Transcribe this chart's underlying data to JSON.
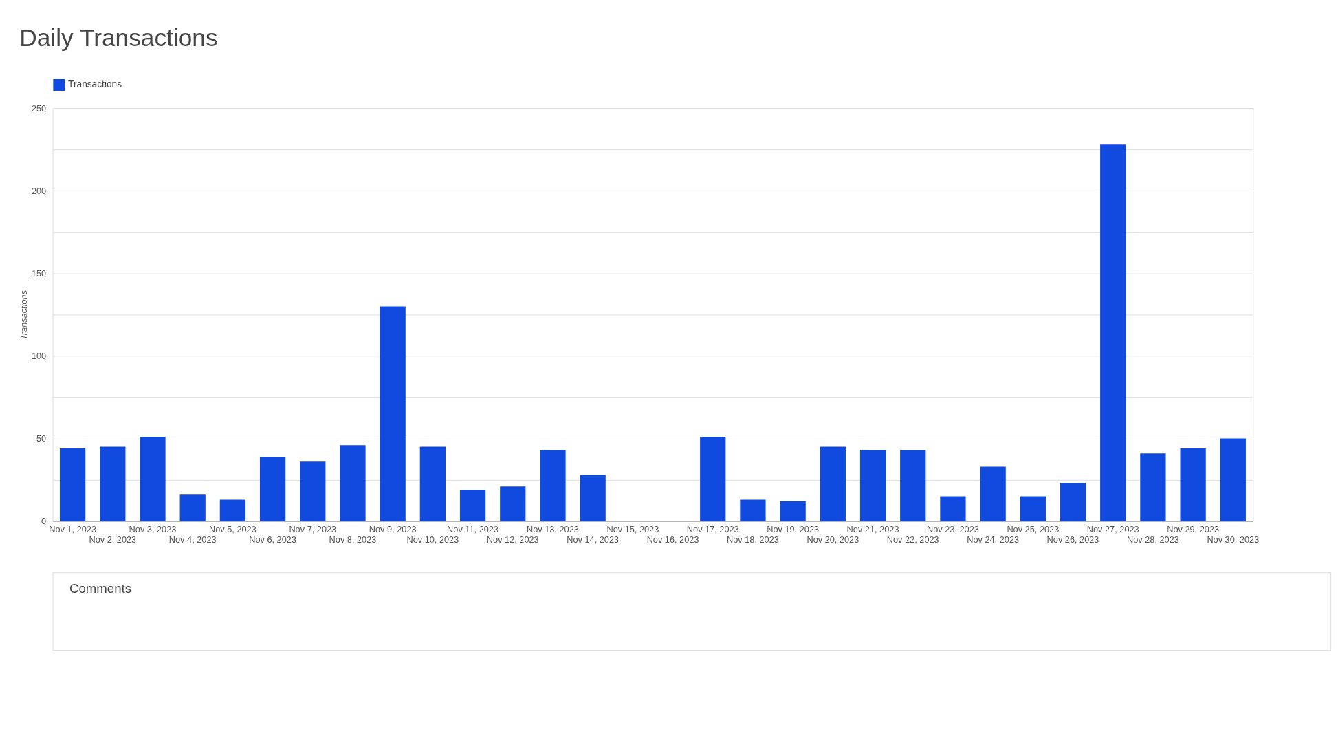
{
  "chart_data": {
    "type": "bar",
    "title": "Daily Transactions",
    "ylabel": "Transactions",
    "categories": [
      "Nov 1, 2023",
      "Nov 2, 2023",
      "Nov 3, 2023",
      "Nov 4, 2023",
      "Nov 5, 2023",
      "Nov 6, 2023",
      "Nov 7, 2023",
      "Nov 8, 2023",
      "Nov 9, 2023",
      "Nov 10, 2023",
      "Nov 11, 2023",
      "Nov 12, 2023",
      "Nov 13, 2023",
      "Nov 14, 2023",
      "Nov 15, 2023",
      "Nov 16, 2023",
      "Nov 17, 2023",
      "Nov 18, 2023",
      "Nov 19, 2023",
      "Nov 20, 2023",
      "Nov 21, 2023",
      "Nov 22, 2023",
      "Nov 23, 2023",
      "Nov 24, 2023",
      "Nov 25, 2023",
      "Nov 26, 2023",
      "Nov 27, 2023",
      "Nov 28, 2023",
      "Nov 29, 2023",
      "Nov 30, 2023"
    ],
    "series": [
      {
        "name": "Transactions",
        "color": "#114ade",
        "values": [
          44,
          45,
          51,
          16,
          13,
          39,
          36,
          46,
          130,
          45,
          19,
          21,
          43,
          28,
          0,
          0,
          51,
          13,
          12,
          45,
          43,
          43,
          15,
          33,
          15,
          23,
          228,
          41,
          44,
          50
        ]
      }
    ],
    "ylim": [
      0,
      250
    ],
    "yticks": [
      0,
      {
        "value": 25,
        "label": null
      },
      50,
      {
        "value": 75,
        "label": null
      },
      100,
      {
        "value": 125,
        "label": null
      },
      150,
      {
        "value": 175,
        "label": null
      },
      200,
      {
        "value": 225,
        "label": null
      },
      250
    ],
    "grid": "y",
    "legend": "top left",
    "annotations": [
      "Comments"
    ]
  }
}
